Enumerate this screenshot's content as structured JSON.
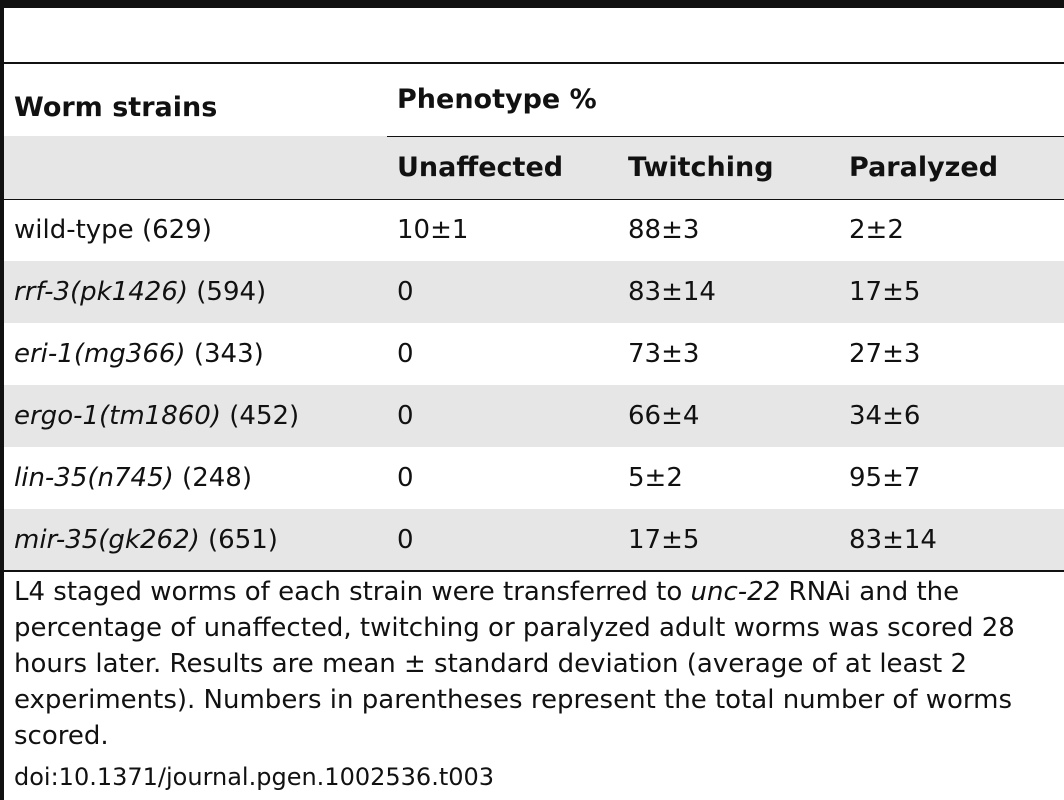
{
  "table": {
    "header": {
      "strains": "Worm strains",
      "phenotype": "Phenotype %",
      "columns": [
        "Unaffected",
        "Twitching",
        "Paralyzed"
      ]
    },
    "rows": [
      {
        "name": "wild-type",
        "name_italic": false,
        "count": " (629)",
        "unaffected": "10±1",
        "twitching": "88±3",
        "paralyzed": "2±2"
      },
      {
        "name": "rrf-3(pk1426)",
        "name_italic": true,
        "count": " (594)",
        "unaffected": "0",
        "twitching": "83±14",
        "paralyzed": "17±5"
      },
      {
        "name": "eri-1(mg366)",
        "name_italic": true,
        "count": " (343)",
        "unaffected": "0",
        "twitching": "73±3",
        "paralyzed": "27±3"
      },
      {
        "name": "ergo-1(tm1860)",
        "name_italic": true,
        "count": " (452)",
        "unaffected": "0",
        "twitching": "66±4",
        "paralyzed": "34±6"
      },
      {
        "name": "lin-35(n745)",
        "name_italic": true,
        "count": " (248)",
        "unaffected": "0",
        "twitching": "5±2",
        "paralyzed": "95±7"
      },
      {
        "name": "mir-35(gk262)",
        "name_italic": true,
        "count": " (651)",
        "unaffected": "0",
        "twitching": "17±5",
        "paralyzed": "83±14"
      }
    ]
  },
  "caption": {
    "part1": "L4 staged worms of each strain were transferred to ",
    "gene": "unc-22",
    "part2": " RNAi and the percentage of unaffected, twitching or paralyzed adult worms was scored 28 hours later. Results are mean ± standard deviation (average of at least 2 experiments). Numbers in parentheses represent the total number of worms scored."
  },
  "doi": "doi:10.1371/journal.pgen.1002536.t003"
}
